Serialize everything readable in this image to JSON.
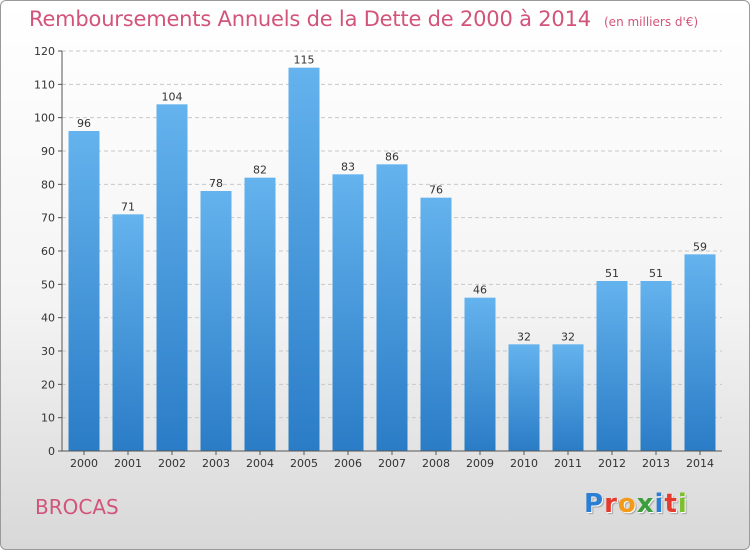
{
  "header": {
    "title": "Remboursements Annuels de la Dette de 2000 à 2014",
    "unit": "(en milliers d'€)"
  },
  "footer": {
    "commune": "BROCAS",
    "logo_letters": [
      "P",
      "r",
      "o",
      "x",
      "i",
      "t",
      "i"
    ]
  },
  "colors": {
    "title": "#d2547a",
    "bar_top": "#64b3ee",
    "bar_bottom": "#2a7cc6",
    "grid": "#c8c8c8"
  },
  "chart_data": {
    "type": "bar",
    "categories": [
      "2000",
      "2001",
      "2002",
      "2003",
      "2004",
      "2005",
      "2006",
      "2007",
      "2008",
      "2009",
      "2010",
      "2011",
      "2012",
      "2013",
      "2014"
    ],
    "values": [
      96,
      71,
      104,
      78,
      82,
      115,
      83,
      86,
      76,
      46,
      32,
      32,
      51,
      51,
      59
    ],
    "ylim": [
      0,
      120
    ],
    "yticks": [
      0,
      10,
      20,
      30,
      40,
      50,
      60,
      70,
      80,
      90,
      100,
      110,
      120
    ],
    "grid": true
  }
}
